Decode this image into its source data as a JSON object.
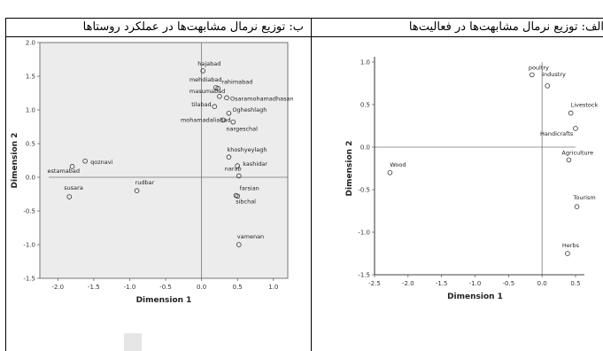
{
  "panels": {
    "left_title": "ب: توزیع نرمال مشابهت‌ها در عملکرد روستاها",
    "right_title": "الف: توزیع نرمال مشابهت‌ها در فعالیت‌ها"
  },
  "chart_data": [
    {
      "type": "scatter",
      "title": "ب: توزیع نرمال مشابهت‌ها در عملکرد روستاها",
      "xlabel": "Dimension 1",
      "ylabel": "Dimension 2",
      "xlim": [
        -2.25,
        1.2
      ],
      "ylim": [
        -1.5,
        2.0
      ],
      "xticks": [
        "-2.0",
        "-1.5",
        "-1.0",
        "-0.5",
        "0.0",
        "0.5",
        "1.0"
      ],
      "yticks": [
        "2.0",
        "1.5",
        "1.0",
        "0.5",
        "0.0",
        "-0.5",
        "-1.0",
        "-1.5"
      ],
      "background": "#ececec",
      "points": [
        {
          "label": "hajabad",
          "x": 0.02,
          "y": 1.58
        },
        {
          "label": "mehdiabad",
          "x": 0.2,
          "y": 1.33
        },
        {
          "label": "rahimabad",
          "x": 0.23,
          "y": 1.32
        },
        {
          "label": "masumabad",
          "x": 0.25,
          "y": 1.2
        },
        {
          "label": "Osaramohamadhasan",
          "x": 0.35,
          "y": 1.18
        },
        {
          "label": "tilabad",
          "x": 0.18,
          "y": 1.05
        },
        {
          "label": "Ogheshlagh",
          "x": 0.38,
          "y": 0.95
        },
        {
          "label": "mohamadaliabad",
          "x": 0.3,
          "y": 0.85
        },
        {
          "label": "nargeschal",
          "x": 0.44,
          "y": 0.82
        },
        {
          "label": "khoshyeylagh",
          "x": 0.38,
          "y": 0.3
        },
        {
          "label": "kashidar",
          "x": 0.5,
          "y": 0.17
        },
        {
          "label": "qoznavi",
          "x": -1.62,
          "y": 0.24
        },
        {
          "label": "estamabad",
          "x": -1.8,
          "y": 0.16
        },
        {
          "label": "narab",
          "x": 0.52,
          "y": 0.02
        },
        {
          "label": "rudbar",
          "x": -0.9,
          "y": -0.2
        },
        {
          "label": "susara",
          "x": -1.84,
          "y": -0.29
        },
        {
          "label": "farsian",
          "x": 0.48,
          "y": -0.27
        },
        {
          "label": "sibchal",
          "x": 0.5,
          "y": -0.28
        },
        {
          "label": "vamenan",
          "x": 0.52,
          "y": -1.0
        }
      ]
    },
    {
      "type": "scatter",
      "title": "الف: توزیع نرمال مشابهت‌ها در فعالیت‌ها",
      "xlabel": "Dimension 1",
      "ylabel": "Dimension 2",
      "xlim": [
        -2.5,
        0.5
      ],
      "ylim": [
        -1.5,
        1.0
      ],
      "xticks": [
        "-2.5",
        "-2.0",
        "-1.5",
        "-1.0",
        "-0.5",
        "0.0",
        "0.5"
      ],
      "yticks": [
        "1.0",
        "0.5",
        "0.0",
        "-0.5",
        "-1.0",
        "-1.5"
      ],
      "background": "#ffffff",
      "points": [
        {
          "label": "poultry",
          "x": -0.15,
          "y": 0.85
        },
        {
          "label": "industry",
          "x": 0.08,
          "y": 0.72
        },
        {
          "label": "Livestock",
          "x": 0.43,
          "y": 0.4
        },
        {
          "label": "Handicrafts",
          "x": 0.5,
          "y": 0.22
        },
        {
          "label": "Wood",
          "x": -2.27,
          "y": -0.3
        },
        {
          "label": "Agriculture",
          "x": 0.4,
          "y": -0.15
        },
        {
          "label": "Tourism",
          "x": 0.52,
          "y": -0.7
        },
        {
          "label": "Herbs",
          "x": 0.38,
          "y": -1.25
        }
      ]
    }
  ]
}
